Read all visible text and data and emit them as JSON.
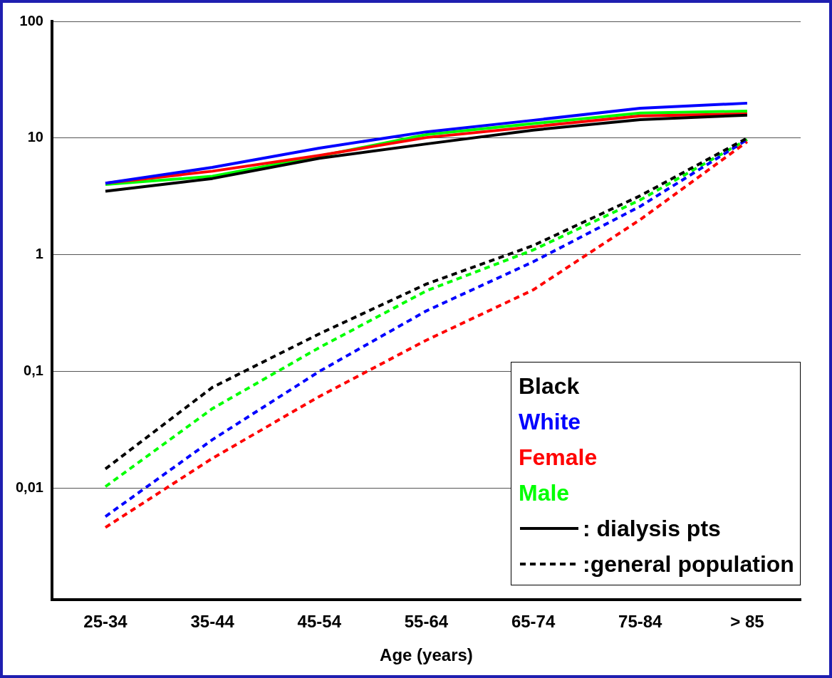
{
  "chart_data": {
    "type": "line",
    "xlabel": "Age (years)",
    "categories": [
      "25-34",
      "35-44",
      "45-54",
      "55-64",
      "65-74",
      "75-84",
      "> 85"
    ],
    "series": [
      {
        "name": "Black",
        "color": "#000000",
        "line_style": "solid",
        "values": [
          3.5,
          4.5,
          6.7,
          8.9,
          11.7,
          14.4,
          15.7
        ]
      },
      {
        "name": "White",
        "color": "#0000ff",
        "line_style": "solid",
        "values": [
          4.1,
          5.6,
          8.2,
          11.3,
          14.2,
          18,
          19.9
        ]
      },
      {
        "name": "Female",
        "color": "#ff0000",
        "line_style": "solid",
        "values": [
          4.1,
          5.2,
          7.1,
          10.1,
          12.5,
          15.5,
          16.1
        ]
      },
      {
        "name": "Male",
        "color": "#00ff00",
        "line_style": "solid",
        "values": [
          4.0,
          4.7,
          7.0,
          10.7,
          13.3,
          16.4,
          17.0
        ]
      },
      {
        "color": "#000000",
        "line_style": "dashed",
        "values": [
          0.0146,
          0.073,
          0.21,
          0.56,
          1.2,
          3.2,
          10
        ]
      },
      {
        "color": "#0000ff",
        "line_style": "dashed",
        "values": [
          0.0057,
          0.026,
          0.1,
          0.33,
          0.87,
          2.6,
          9.7
        ]
      },
      {
        "color": "#ff0000",
        "line_style": "dashed",
        "values": [
          0.0046,
          0.018,
          0.061,
          0.185,
          0.5,
          2.0,
          9.3
        ]
      },
      {
        "color": "#00ff00",
        "line_style": "dashed",
        "values": [
          0.0103,
          0.048,
          0.16,
          0.49,
          1.1,
          2.95,
          9.7
        ]
      }
    ],
    "annotations": [
      ": dialysis pts",
      ":general population"
    ],
    "log": "y",
    "ylim": [
      0.0011,
      100
    ],
    "yticks": [
      {
        "value": 0.01,
        "label": "0,01"
      },
      {
        "value": 0.1,
        "label": "0,1"
      },
      1,
      10,
      100
    ],
    "grid": "y",
    "legend": "bottom right",
    "marker": "none"
  }
}
